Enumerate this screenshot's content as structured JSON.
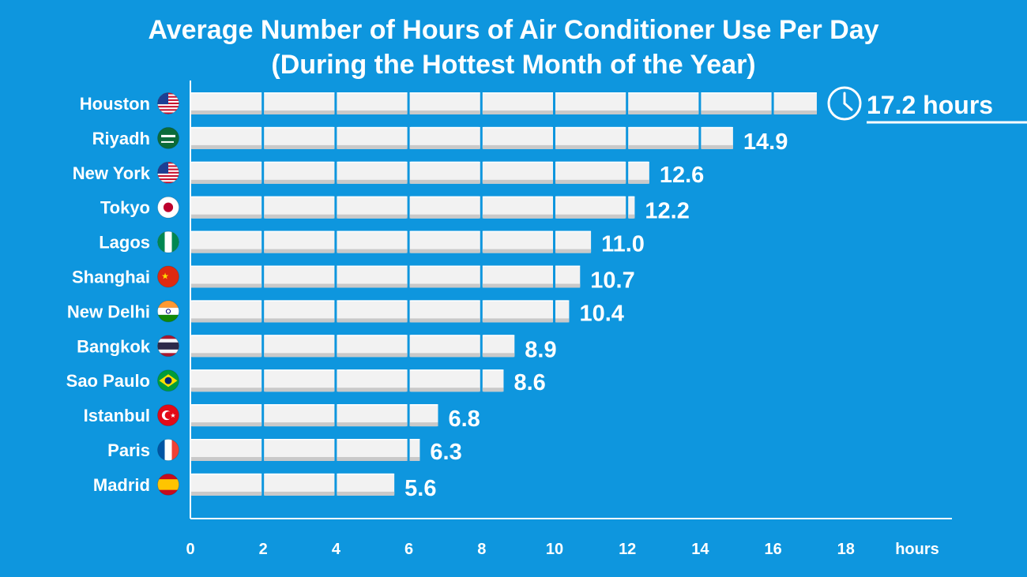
{
  "chart_data": {
    "type": "bar",
    "orientation": "horizontal",
    "title": "Average Number of Hours of Air Conditioner Use Per Day",
    "subtitle": "(During the Hottest Month of the Year)",
    "categories": [
      "Houston",
      "Riyadh",
      "New York",
      "Tokyo",
      "Lagos",
      "Shanghai",
      "New Delhi",
      "Bangkok",
      "Sao Paulo",
      "Istanbul",
      "Paris",
      "Madrid"
    ],
    "values": [
      17.2,
      14.9,
      12.6,
      12.2,
      11.0,
      10.7,
      10.4,
      8.9,
      8.6,
      6.8,
      6.3,
      5.6
    ],
    "value_labels": [
      "17.2 hours",
      "14.9",
      "12.6",
      "12.2",
      "11.0",
      "10.7",
      "10.4",
      "8.9",
      "8.6",
      "6.8",
      "6.3",
      "5.6"
    ],
    "flag_icons": [
      "usa-flag-icon",
      "saudi-arabia-flag-icon",
      "usa-flag-icon",
      "japan-flag-icon",
      "nigeria-flag-icon",
      "china-flag-icon",
      "india-flag-icon",
      "thailand-flag-icon",
      "brazil-flag-icon",
      "turkey-flag-icon",
      "france-flag-icon",
      "spain-flag-icon"
    ],
    "x_ticks": [
      0,
      2,
      4,
      6,
      8,
      10,
      12,
      14,
      16,
      18
    ],
    "x_unit_label": "hours",
    "xlim": [
      0,
      20
    ],
    "highlight_icon": "clock-icon",
    "grid": false
  },
  "colors": {
    "background": "#0e96de",
    "text": "#ffffff",
    "bar_unit": "#f2f2f2",
    "bar_unit_shadow": "#c9c9c9"
  }
}
